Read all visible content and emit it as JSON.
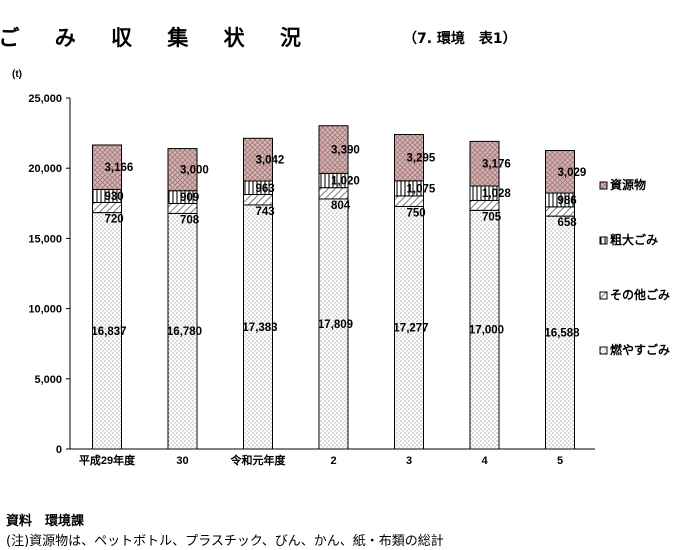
{
  "chart_data": {
    "type": "bar",
    "stacked": true,
    "title": "ご み 収 集 状 況",
    "subtitle": "（7. 環境　表1）",
    "unit": "(t)",
    "categories": [
      "平成29年度",
      "30",
      "令和元年度",
      "2",
      "3",
      "4",
      "5"
    ],
    "ylim": [
      0,
      25000
    ],
    "yticks": [
      0,
      5000,
      10000,
      15000,
      20000,
      25000
    ],
    "ytick_labels": [
      "0",
      "5,000",
      "10,000",
      "15,000",
      "20,000",
      "25,000"
    ],
    "legend_position": "right",
    "grid": false,
    "series": [
      {
        "name": "燃やすごみ",
        "pattern": "dots",
        "values": [
          16837,
          16780,
          17383,
          17809,
          17277,
          17000,
          16588
        ],
        "labels": [
          "16,837",
          "16,780",
          "17,383",
          "17,809",
          "17,277",
          "17,000",
          "16,588"
        ]
      },
      {
        "name": "その他ごみ",
        "pattern": "diagonal",
        "values": [
          720,
          708,
          743,
          804,
          750,
          705,
          658
        ],
        "labels": [
          "720",
          "708",
          "743",
          "804",
          "750",
          "705",
          "658"
        ]
      },
      {
        "name": "粗大ごみ",
        "pattern": "vertical",
        "values": [
          930,
          909,
          963,
          1020,
          1075,
          1028,
          986
        ],
        "labels": [
          "930",
          "909",
          "963",
          "1,020",
          "1,075",
          "1,028",
          "986"
        ]
      },
      {
        "name": "資源物",
        "pattern": "crosshatch",
        "color": "#d7b4b4",
        "values": [
          3166,
          3000,
          3042,
          3390,
          3295,
          3176,
          3029
        ],
        "labels": [
          "3,166",
          "3,000",
          "3,042",
          "3,390",
          "3,295",
          "3,176",
          "3,029"
        ]
      }
    ]
  },
  "source": "資料　環境課",
  "footnote": "(注)資源物は、ペットボトル、プラスチック、びん、かん、紙・布類の総計"
}
